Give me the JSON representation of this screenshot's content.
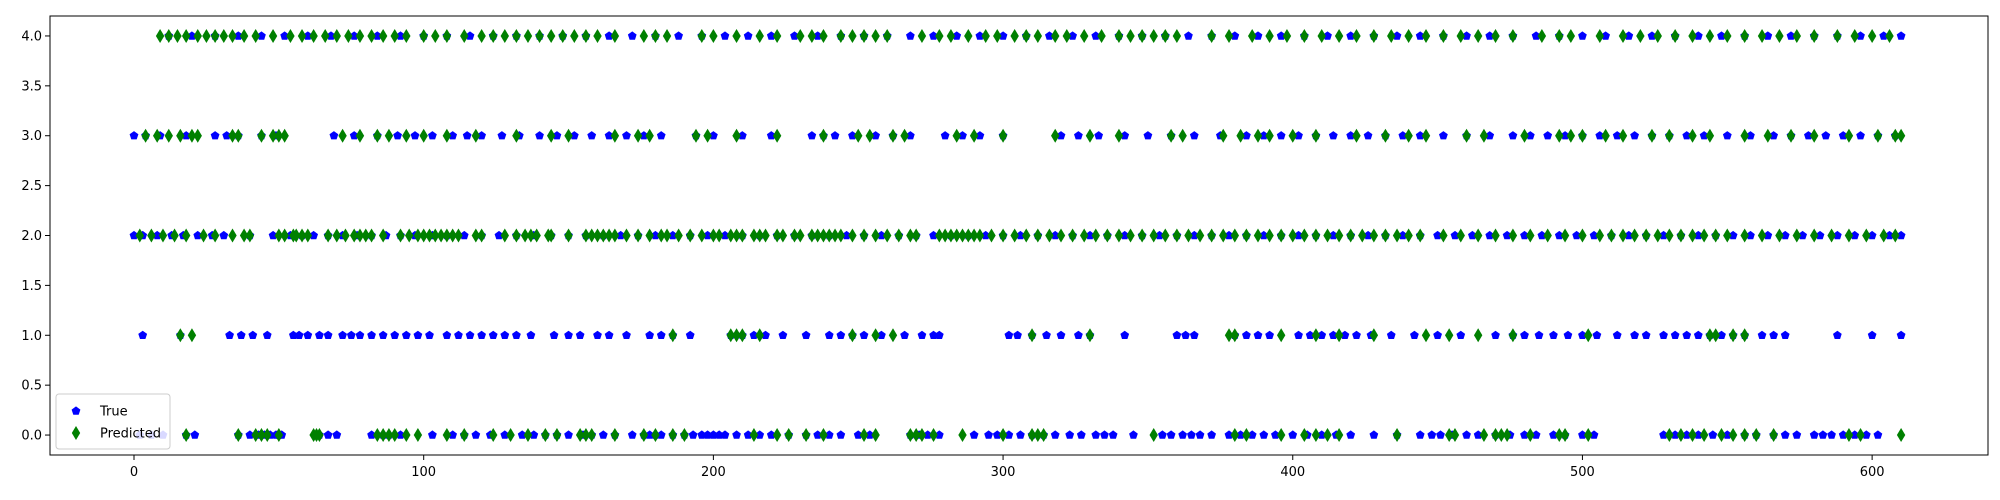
{
  "chart_data": {
    "type": "scatter",
    "title": "",
    "xlabel": "",
    "ylabel": "",
    "xlim": [
      -29,
      640
    ],
    "ylim": [
      -0.2,
      4.2
    ],
    "xticks": [
      0,
      100,
      200,
      300,
      400,
      500,
      600
    ],
    "yticks": [
      0.0,
      0.5,
      1.0,
      1.5,
      2.0,
      2.5,
      3.0,
      3.5,
      4.0
    ],
    "xtick_labels": [
      "0",
      "100",
      "200",
      "300",
      "400",
      "500",
      "600"
    ],
    "ytick_labels": [
      "0.0",
      "0.5",
      "1.0",
      "1.5",
      "2.0",
      "2.5",
      "3.0",
      "3.5",
      "4.0"
    ],
    "grid": false,
    "legend_position": "lower-left",
    "x_count": 612,
    "series": [
      {
        "name": "True",
        "marker": "pentagon",
        "color": "#0000ff",
        "points_by_level": {
          "0": [
            2,
            6,
            10,
            18,
            21,
            36,
            40,
            43,
            45,
            47,
            49,
            50,
            51,
            64,
            67,
            70,
            82,
            86,
            88,
            92,
            103,
            110,
            114,
            118,
            123,
            128,
            134,
            138,
            142,
            146,
            150,
            155,
            158,
            162,
            166,
            172,
            176,
            178,
            180,
            182,
            186,
            190,
            193,
            196,
            198,
            200,
            202,
            204,
            208,
            212,
            216,
            220,
            226,
            232,
            236,
            240,
            244,
            250,
            254,
            268,
            271,
            274,
            278,
            290,
            295,
            298,
            302,
            306,
            310,
            314,
            318,
            323,
            327,
            332,
            335,
            338,
            345,
            355,
            358,
            362,
            365,
            368,
            372,
            378,
            382,
            386,
            390,
            394,
            400,
            405,
            410,
            415,
            420,
            428,
            436,
            444,
            448,
            451,
            455,
            460,
            464,
            470,
            475,
            480,
            484,
            490,
            494,
            500,
            504,
            528,
            532,
            536,
            540,
            545,
            550,
            556,
            560,
            566,
            570,
            574,
            580,
            583,
            586,
            590,
            594,
            598,
            602
          ],
          "1": [
            3,
            16,
            33,
            37,
            41,
            46,
            55,
            57,
            60,
            64,
            67,
            72,
            75,
            78,
            82,
            86,
            90,
            94,
            98,
            102,
            108,
            112,
            116,
            120,
            124,
            128,
            132,
            137,
            145,
            150,
            154,
            160,
            164,
            170,
            178,
            182,
            186,
            192,
            206,
            210,
            214,
            218,
            224,
            232,
            240,
            244,
            248,
            252,
            258,
            266,
            272,
            276,
            278,
            302,
            305,
            310,
            315,
            320,
            326,
            330,
            342,
            360,
            363,
            366,
            380,
            384,
            388,
            392,
            402,
            406,
            410,
            414,
            418,
            422,
            427,
            434,
            442,
            450,
            458,
            470,
            476,
            480,
            485,
            490,
            495,
            500,
            505,
            512,
            518,
            522,
            528,
            532,
            536,
            540,
            544,
            548,
            552,
            556,
            562,
            566,
            570,
            588,
            600,
            610
          ],
          "2": [
            0,
            3,
            8,
            13,
            17,
            22,
            27,
            31,
            40,
            48,
            54,
            58,
            62,
            67,
            72,
            77,
            82,
            87,
            92,
            97,
            103,
            108,
            114,
            120,
            126,
            132,
            138,
            144,
            150,
            156,
            162,
            168,
            174,
            180,
            186,
            192,
            198,
            204,
            210,
            216,
            222,
            228,
            234,
            240,
            246,
            252,
            258,
            264,
            270,
            276,
            282,
            288,
            294,
            300,
            306,
            312,
            318,
            324,
            330,
            336,
            342,
            348,
            354,
            360,
            366,
            372,
            378,
            384,
            390,
            396,
            402,
            408,
            414,
            420,
            426,
            432,
            438,
            444,
            450,
            456,
            462,
            468,
            474,
            480,
            486,
            492,
            498,
            504,
            510,
            516,
            522,
            528,
            534,
            540,
            546,
            552,
            558,
            564,
            570,
            576,
            582,
            588,
            594,
            600,
            606,
            610
          ],
          "3": [
            0,
            4,
            9,
            18,
            28,
            32,
            36,
            44,
            49,
            69,
            76,
            84,
            91,
            97,
            103,
            110,
            115,
            120,
            127,
            133,
            140,
            146,
            152,
            158,
            164,
            170,
            176,
            182,
            194,
            200,
            210,
            220,
            234,
            238,
            242,
            248,
            256,
            262,
            268,
            280,
            286,
            292,
            300,
            320,
            326,
            333,
            342,
            350,
            358,
            366,
            375,
            384,
            390,
            396,
            402,
            408,
            414,
            420,
            426,
            432,
            438,
            444,
            452,
            460,
            468,
            476,
            482,
            488,
            494,
            500,
            506,
            512,
            518,
            524,
            530,
            536,
            542,
            550,
            558,
            566,
            572,
            578,
            584,
            590,
            596,
            602,
            608
          ],
          "4": [
            12,
            20,
            28,
            36,
            44,
            52,
            60,
            68,
            76,
            84,
            92,
            100,
            108,
            116,
            124,
            132,
            140,
            148,
            156,
            164,
            172,
            180,
            188,
            196,
            204,
            212,
            220,
            228,
            236,
            244,
            252,
            260,
            268,
            276,
            284,
            292,
            300,
            308,
            316,
            324,
            332,
            340,
            348,
            356,
            364,
            372,
            380,
            388,
            396,
            404,
            412,
            420,
            428,
            436,
            444,
            452,
            460,
            468,
            476,
            484,
            492,
            500,
            508,
            516,
            524,
            532,
            540,
            548,
            556,
            564,
            572,
            580,
            588,
            596,
            604,
            610
          ]
        }
      },
      {
        "name": "Predicted",
        "marker": "thin_diamond",
        "color": "#008000",
        "points_by_level": {
          "0": [
            18,
            36,
            42,
            44,
            46,
            50,
            62,
            63,
            64,
            84,
            86,
            88,
            90,
            94,
            98,
            108,
            114,
            124,
            130,
            136,
            142,
            146,
            154,
            156,
            158,
            166,
            176,
            180,
            186,
            190,
            214,
            222,
            226,
            232,
            238,
            252,
            256,
            268,
            270,
            272,
            276,
            286,
            300,
            310,
            312,
            314,
            352,
            380,
            384,
            396,
            404,
            408,
            412,
            416,
            436,
            454,
            456,
            466,
            470,
            472,
            474,
            482,
            492,
            494,
            502,
            530,
            534,
            538,
            542,
            548,
            552,
            556,
            560,
            566,
            592,
            596,
            610
          ],
          "1": [
            16,
            20,
            186,
            206,
            208,
            210,
            216,
            248,
            256,
            262,
            310,
            330,
            378,
            380,
            396,
            408,
            416,
            428,
            446,
            454,
            464,
            476,
            502,
            544,
            546,
            552,
            556
          ],
          "2": [
            2,
            6,
            10,
            14,
            18,
            24,
            28,
            34,
            38,
            40,
            50,
            52,
            55,
            56,
            58,
            60,
            67,
            70,
            73,
            76,
            78,
            80,
            82,
            86,
            92,
            95,
            98,
            100,
            102,
            104,
            106,
            108,
            110,
            112,
            118,
            120,
            128,
            132,
            135,
            137,
            139,
            143,
            144,
            150,
            156,
            158,
            160,
            162,
            164,
            166,
            170,
            174,
            178,
            182,
            184,
            188,
            192,
            196,
            200,
            202,
            206,
            208,
            210,
            214,
            216,
            218,
            222,
            224,
            228,
            230,
            234,
            236,
            238,
            240,
            242,
            244,
            248,
            252,
            256,
            260,
            264,
            268,
            270,
            278,
            280,
            282,
            284,
            286,
            288,
            290,
            292,
            296,
            300,
            304,
            308,
            312,
            316,
            320,
            324,
            328,
            332,
            336,
            340,
            344,
            348,
            352,
            356,
            360,
            364,
            368,
            372,
            376,
            380,
            384,
            388,
            392,
            396,
            400,
            404,
            408,
            412,
            416,
            420,
            424,
            428,
            432,
            436,
            440,
            444,
            452,
            458,
            464,
            470,
            476,
            482,
            488,
            494,
            500,
            506,
            510,
            514,
            518,
            522,
            526,
            530,
            534,
            538,
            542,
            546,
            550,
            556,
            562,
            568,
            574,
            580,
            586,
            592,
            598,
            604,
            608
          ],
          "3": [
            4,
            8,
            12,
            16,
            20,
            22,
            34,
            36,
            44,
            48,
            50,
            52,
            72,
            78,
            84,
            88,
            94,
            100,
            108,
            118,
            132,
            144,
            150,
            166,
            174,
            178,
            194,
            198,
            208,
            222,
            238,
            250,
            254,
            262,
            266,
            284,
            290,
            300,
            318,
            330,
            340,
            358,
            362,
            376,
            382,
            388,
            392,
            400,
            408,
            422,
            432,
            440,
            446,
            460,
            466,
            480,
            492,
            496,
            500,
            508,
            514,
            524,
            530,
            538,
            544,
            556,
            564,
            572,
            580,
            592,
            602,
            608,
            610
          ],
          "4": [
            9,
            12,
            15,
            18,
            22,
            25,
            28,
            31,
            34,
            38,
            42,
            48,
            54,
            58,
            62,
            66,
            70,
            74,
            78,
            82,
            86,
            90,
            94,
            100,
            104,
            108,
            114,
            120,
            124,
            128,
            132,
            136,
            140,
            144,
            148,
            152,
            156,
            160,
            166,
            176,
            180,
            184,
            196,
            200,
            208,
            216,
            222,
            230,
            234,
            238,
            244,
            248,
            252,
            256,
            260,
            272,
            278,
            282,
            288,
            294,
            298,
            304,
            308,
            312,
            318,
            322,
            328,
            334,
            340,
            344,
            348,
            352,
            356,
            360,
            372,
            378,
            386,
            392,
            398,
            404,
            410,
            416,
            422,
            428,
            434,
            440,
            446,
            452,
            458,
            464,
            470,
            476,
            486,
            492,
            496,
            506,
            514,
            520,
            526,
            532,
            538,
            544,
            550,
            556,
            562,
            568,
            574,
            580,
            588,
            594,
            600,
            606
          ]
        }
      }
    ]
  }
}
